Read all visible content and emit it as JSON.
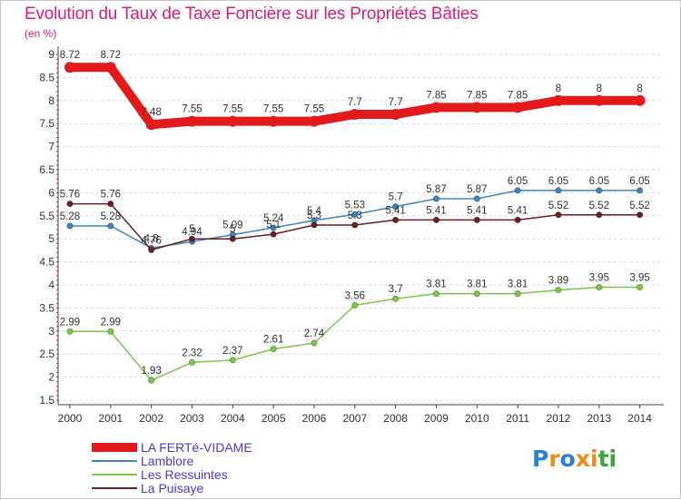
{
  "title": "Evolution du Taux de Taxe Foncière sur les Propriétés Bâties",
  "unit": "(en %)",
  "logo": "Proxiti",
  "chart_data": {
    "type": "line",
    "title": "Evolution du Taux de Taxe Foncière sur les Propriétés Bâties",
    "ylabel": "(en %)",
    "xlabel": "",
    "x": [
      2000,
      2001,
      2002,
      2003,
      2004,
      2005,
      2006,
      2007,
      2008,
      2009,
      2010,
      2011,
      2012,
      2013,
      2014
    ],
    "ylim": [
      1.5,
      9
    ],
    "yticks": [
      1.5,
      2,
      2.5,
      3,
      3.5,
      4,
      4.5,
      5,
      5.5,
      6,
      6.5,
      7,
      7.5,
      8,
      8.5,
      9
    ],
    "grid": "horizontal dashed",
    "legend_position": "bottom-left",
    "series": [
      {
        "name": "LA FERTé-VIDAME",
        "color": "#e31a1c",
        "values": [
          8.72,
          8.72,
          7.48,
          7.55,
          7.55,
          7.55,
          7.55,
          7.7,
          7.7,
          7.85,
          7.85,
          7.85,
          8,
          8,
          8
        ],
        "labels": [
          "8.72",
          "8.72",
          "7.48",
          "7.55",
          "7.55",
          "7.55",
          "7.55",
          "7.7",
          "7.7",
          "7.85",
          "7.85",
          "7.85",
          "8",
          "8",
          "8"
        ]
      },
      {
        "name": "Lamblore",
        "color": "#3b84c4",
        "values": [
          5.28,
          5.28,
          4.8,
          4.94,
          5.09,
          5.24,
          5.4,
          5.53,
          5.7,
          5.87,
          5.87,
          6.05,
          6.05,
          6.05,
          6.05
        ],
        "labels": [
          "5.28",
          "5.28",
          "4.8",
          "4.94",
          "5.09",
          "5.24",
          "5.4",
          "5.53",
          "5.7",
          "5.87",
          "5.87",
          "6.05",
          "6.05",
          "6.05",
          "6.05"
        ]
      },
      {
        "name": "Les Ressuintes",
        "color": "#7ac943",
        "values": [
          2.99,
          2.99,
          1.93,
          2.32,
          2.37,
          2.61,
          2.74,
          3.56,
          3.7,
          3.81,
          3.81,
          3.81,
          3.89,
          3.95,
          3.95
        ],
        "labels": [
          "2.99",
          "2.99",
          "1.93",
          "2.32",
          "2.37",
          "2.61",
          "2.74",
          "3.56",
          "3.7",
          "3.81",
          "3.81",
          "3.81",
          "3.89",
          "3.95",
          "3.95"
        ]
      },
      {
        "name": "La Puisaye",
        "color": "#6b1e24",
        "values": [
          5.76,
          5.76,
          4.76,
          5,
          5,
          5.1,
          5.3,
          5.3,
          5.41,
          5.41,
          5.41,
          5.41,
          5.52,
          5.52,
          5.52
        ],
        "labels": [
          "5.76",
          "5.76",
          "4.76",
          "5",
          "5",
          "5.1",
          "5.3",
          "5.3",
          "5.41",
          "5.41",
          "5.41",
          "5.41",
          "5.52",
          "5.52",
          "5.52"
        ]
      }
    ]
  }
}
